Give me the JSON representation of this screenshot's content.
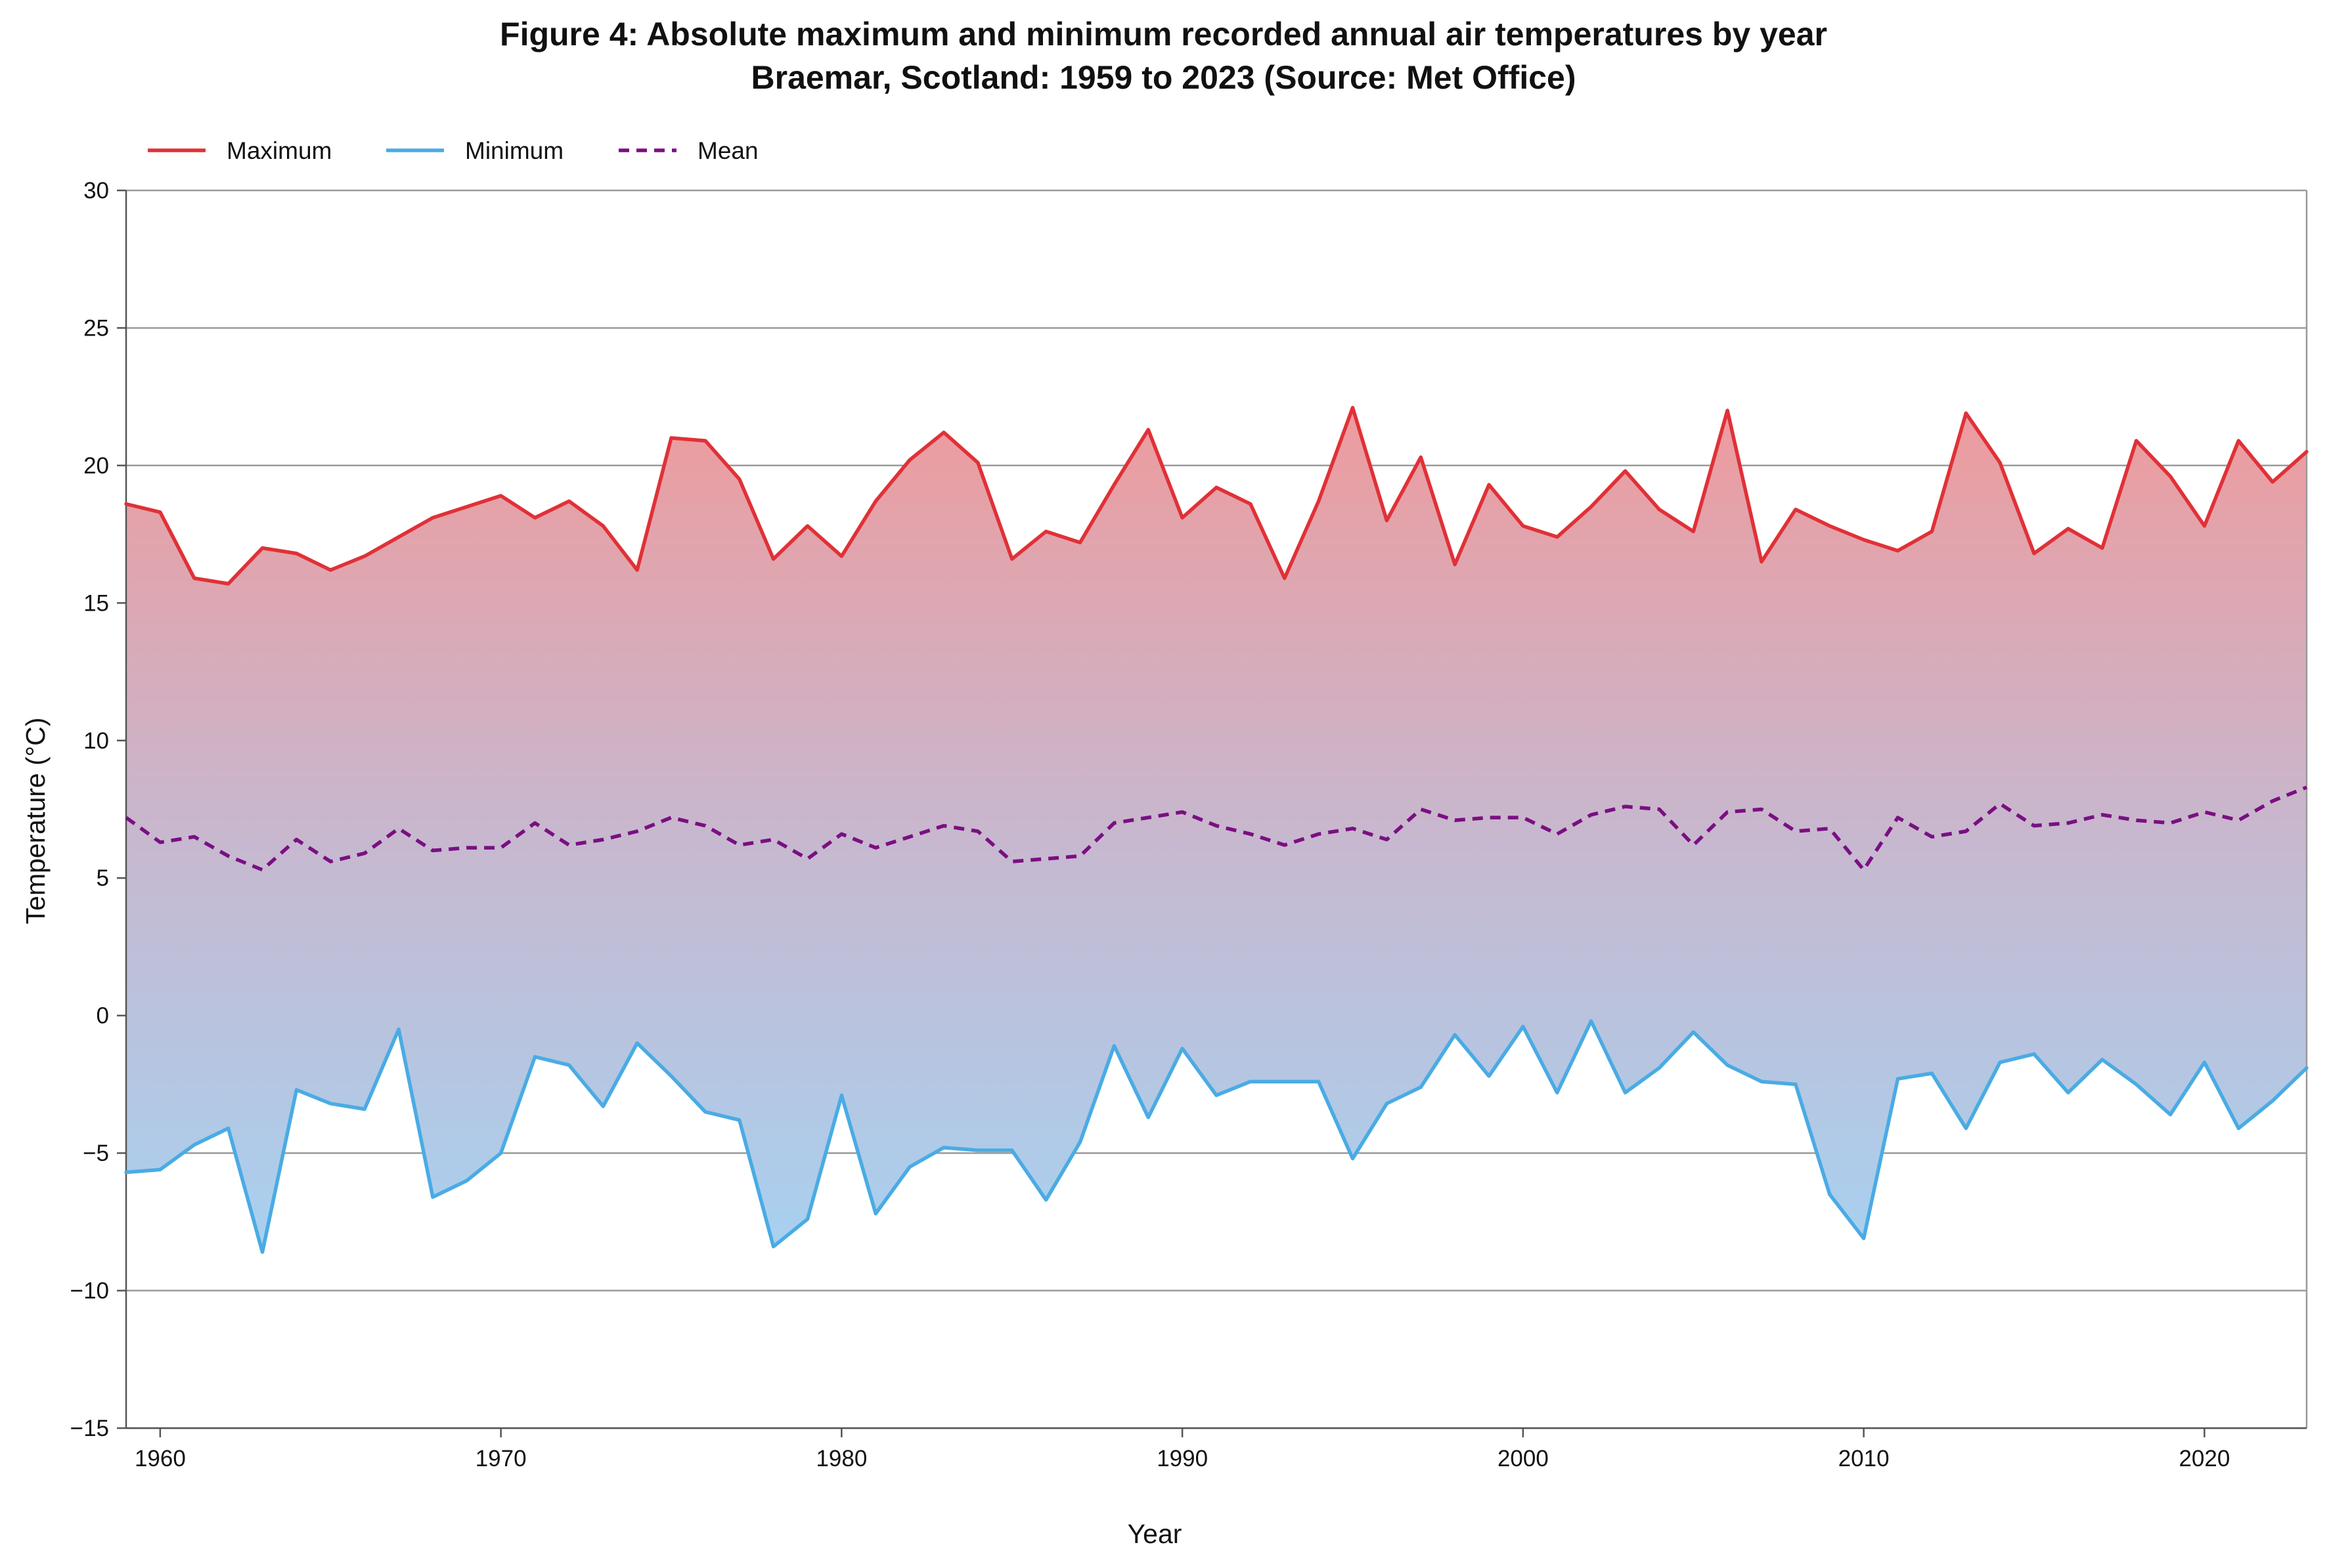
{
  "chart_data": {
    "type": "line",
    "title": "Figure 4: Absolute maximum and minimum recorded annual air temperatures by year",
    "subtitle": "Braemar, Scotland: 1959 to 2023 (Source: Met Office)",
    "xlabel": "Year",
    "ylabel": "Temperature (°C)",
    "xlim": [
      1959,
      2023
    ],
    "ylim": [
      -15,
      30
    ],
    "yticks": [
      -15,
      -10,
      -5,
      0,
      5,
      10,
      15,
      20,
      25,
      30
    ],
    "yticklabels": [
      "−15",
      "−10",
      "−5",
      "0",
      "5",
      "10",
      "15",
      "20",
      "25",
      "30"
    ],
    "xticks": [
      1960,
      1970,
      1980,
      1990,
      2000,
      2010,
      2020
    ],
    "xticklabels": [
      "1960",
      "1970",
      "1980",
      "1990",
      "2000",
      "2010",
      "2020"
    ],
    "grid": "horizontal",
    "legend_position": "top-left",
    "fill_between": "Maximum-Minimum gradient (red to blue)",
    "x": [
      1959,
      1960,
      1961,
      1962,
      1963,
      1964,
      1965,
      1966,
      1967,
      1968,
      1969,
      1970,
      1971,
      1972,
      1973,
      1974,
      1975,
      1976,
      1977,
      1978,
      1979,
      1980,
      1981,
      1982,
      1983,
      1984,
      1985,
      1986,
      1987,
      1988,
      1989,
      1990,
      1991,
      1992,
      1993,
      1994,
      1995,
      1996,
      1997,
      1998,
      1999,
      2000,
      2001,
      2002,
      2003,
      2004,
      2005,
      2006,
      2007,
      2008,
      2009,
      2010,
      2011,
      2012,
      2013,
      2014,
      2015,
      2016,
      2017,
      2018,
      2019,
      2020,
      2021,
      2022,
      2023
    ],
    "series": [
      {
        "name": "Maximum",
        "color": "#e03137",
        "style": "solid",
        "values": [
          18.6,
          18.3,
          15.9,
          15.7,
          17.0,
          16.8,
          16.2,
          16.7,
          17.4,
          18.1,
          18.5,
          18.9,
          18.1,
          18.7,
          17.8,
          16.2,
          21.0,
          20.9,
          19.5,
          16.6,
          17.8,
          16.7,
          18.7,
          20.2,
          21.2,
          20.1,
          16.6,
          17.6,
          17.2,
          19.3,
          21.3,
          18.1,
          19.2,
          18.6,
          15.9,
          18.7,
          22.1,
          18.0,
          20.3,
          16.4,
          19.3,
          17.8,
          17.4,
          18.5,
          19.8,
          18.4,
          17.6,
          22.0,
          16.5,
          18.4,
          17.8,
          17.3,
          16.9,
          17.6,
          21.9,
          20.1,
          16.8,
          17.7,
          17.0,
          20.9,
          19.6,
          17.8,
          20.9,
          19.4,
          20.5
        ]
      },
      {
        "name": "Minimum",
        "color": "#4aabe4",
        "style": "solid",
        "values": [
          -5.7,
          -5.6,
          -4.7,
          -4.1,
          -8.6,
          -2.7,
          -3.2,
          -3.4,
          -0.5,
          -6.6,
          -6.0,
          -5.0,
          -1.5,
          -1.8,
          -3.3,
          -1.0,
          -2.2,
          -3.5,
          -3.8,
          -8.4,
          -7.4,
          -2.9,
          -7.2,
          -5.5,
          -4.8,
          -4.9,
          -4.9,
          -6.7,
          -4.6,
          -1.1,
          -3.7,
          -1.2,
          -2.9,
          -2.4,
          -2.4,
          -2.4,
          -5.2,
          -3.2,
          -2.6,
          -0.7,
          -2.2,
          -0.4,
          -2.8,
          -0.2,
          -2.8,
          -1.9,
          -0.6,
          -1.8,
          -2.4,
          -2.5,
          -6.5,
          -8.1,
          -2.3,
          -2.1,
          -4.1,
          -1.7,
          -1.4,
          -2.8,
          -1.6,
          -2.5,
          -3.6,
          -1.7,
          -4.1,
          -3.1,
          -1.9
        ]
      },
      {
        "name": "Mean",
        "color": "#7a0f82",
        "style": "dashed",
        "values": [
          7.2,
          6.3,
          6.5,
          5.8,
          5.3,
          6.4,
          5.6,
          5.9,
          6.8,
          6.0,
          6.1,
          6.1,
          7.0,
          6.2,
          6.4,
          6.7,
          7.2,
          6.9,
          6.2,
          6.4,
          5.7,
          6.6,
          6.1,
          6.5,
          6.9,
          6.7,
          5.6,
          5.7,
          5.8,
          7.0,
          7.2,
          7.4,
          6.9,
          6.6,
          6.2,
          6.6,
          6.8,
          6.4,
          7.5,
          7.1,
          7.2,
          7.2,
          6.6,
          7.3,
          7.6,
          7.5,
          6.2,
          7.4,
          7.5,
          6.7,
          6.8,
          5.3,
          7.2,
          6.5,
          6.7,
          7.7,
          6.9,
          7.0,
          7.3,
          7.1,
          7.0,
          7.4,
          7.1,
          7.8,
          8.3
        ]
      }
    ]
  }
}
